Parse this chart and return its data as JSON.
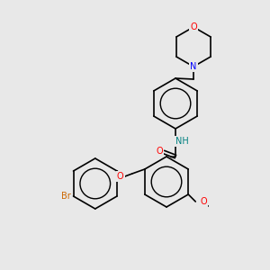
{
  "background_color": "#e8e8e8",
  "bond_color": "#000000",
  "aromatic_bond_color": "#000000",
  "atom_colors": {
    "O": "#ff0000",
    "N": "#0000ff",
    "N_amide": "#008080",
    "Br": "#cc6600",
    "C": "#000000",
    "H": "#008080"
  },
  "fig_width": 3.0,
  "fig_height": 3.0,
  "dpi": 100
}
